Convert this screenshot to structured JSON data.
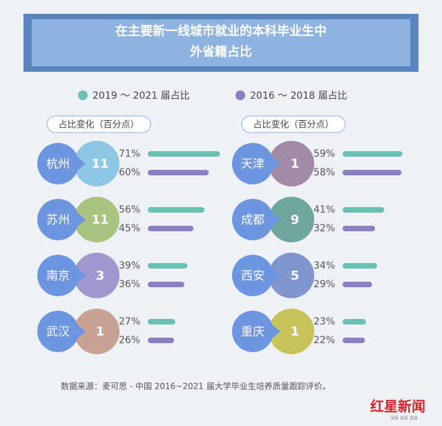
{
  "chart_data": {
    "type": "bar",
    "title_lines": [
      "在主要新一线城市就业的本科毕业生中",
      "外省籍占比"
    ],
    "change_label": "占比变化（百分点）",
    "categories": [
      "杭州",
      "苏州",
      "南京",
      "武汉",
      "天津",
      "成都",
      "西安",
      "重庆"
    ],
    "changes": [
      11,
      11,
      3,
      1,
      1,
      9,
      5,
      1
    ],
    "change_colors": [
      "#8ec7e4",
      "#a9c47f",
      "#9e98cf",
      "#c8a193",
      "#a38aa8",
      "#70a69b",
      "#8196cd",
      "#c9c35c"
    ],
    "series": [
      {
        "name": "2019 ～ 2021 届占比",
        "color": "#6cbfb3",
        "values": [
          71,
          56,
          39,
          27,
          59,
          41,
          34,
          23
        ],
        "value_labels": [
          "71%",
          "56%",
          "39%",
          "27%",
          "59%",
          "41%",
          "34%",
          "23%"
        ]
      },
      {
        "name": "2016 ～ 2018 届占比",
        "color": "#8a7fc1",
        "values": [
          60,
          45,
          36,
          26,
          58,
          32,
          29,
          22
        ],
        "value_labels": [
          "60%",
          "45%",
          "36%",
          "26%",
          "58%",
          "32%",
          "29%",
          "22%"
        ]
      }
    ],
    "source": "数据来源：麦可思 - 中国 2016~2021 届大学毕业生培养质量跟踪评价。",
    "logo": "红星新闻",
    "logo_tagline": "深度 态度 温度"
  }
}
